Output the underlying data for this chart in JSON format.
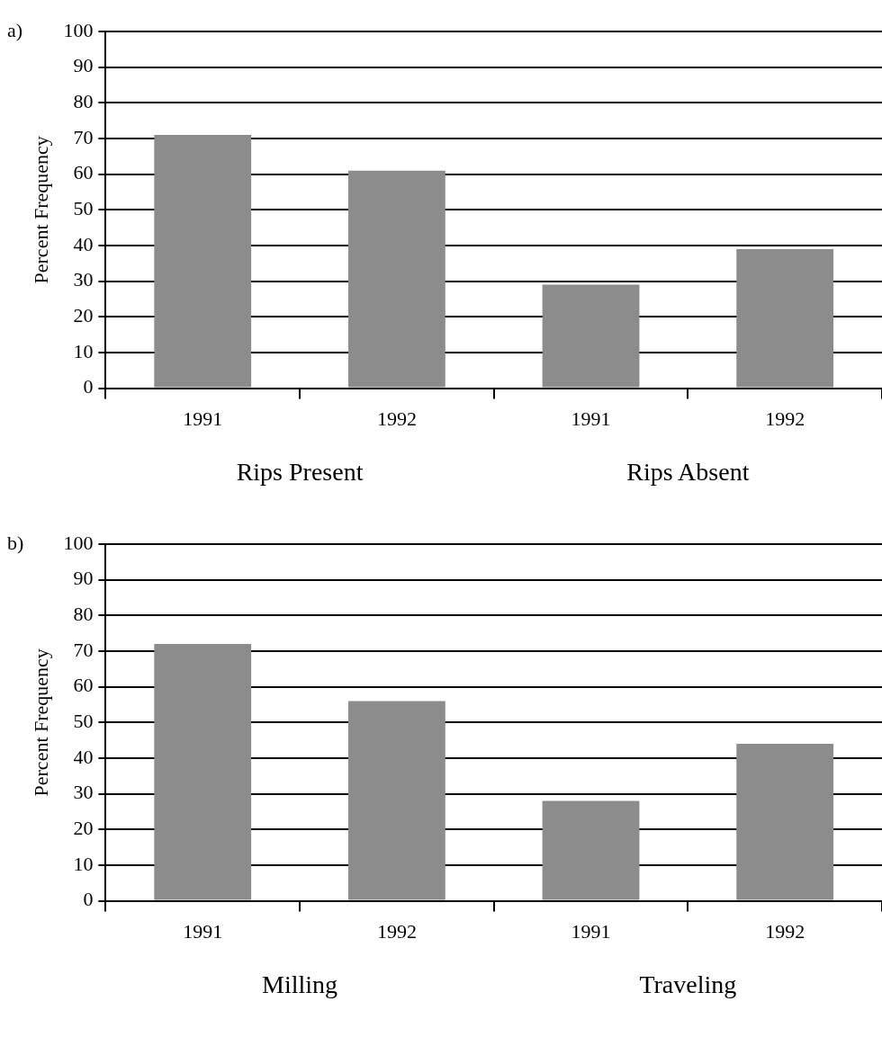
{
  "chart_data": [
    {
      "type": "bar",
      "title": "a)",
      "ylabel": "Percent Frequency",
      "categories": [
        "1991",
        "1992",
        "1991",
        "1992"
      ],
      "values": [
        71,
        61,
        29,
        39
      ],
      "color": "#8c8c8c",
      "ylim": [
        0,
        100
      ],
      "yticks": [
        0,
        10,
        20,
        30,
        40,
        50,
        60,
        70,
        80,
        90,
        100
      ],
      "grid": "y",
      "legend": false,
      "annotations": [
        "Rips Present",
        "Rips Absent"
      ]
    },
    {
      "type": "bar",
      "title": "b)",
      "ylabel": "Percent Frequency",
      "categories": [
        "1991",
        "1992",
        "1991",
        "1992"
      ],
      "values": [
        72,
        56,
        28,
        44
      ],
      "color": "#8c8c8c",
      "ylim": [
        0,
        100
      ],
      "yticks": [
        0,
        10,
        20,
        30,
        40,
        50,
        60,
        70,
        80,
        90,
        100
      ],
      "grid": "y",
      "legend": false,
      "annotations": [
        "Milling",
        "Traveling"
      ]
    }
  ]
}
